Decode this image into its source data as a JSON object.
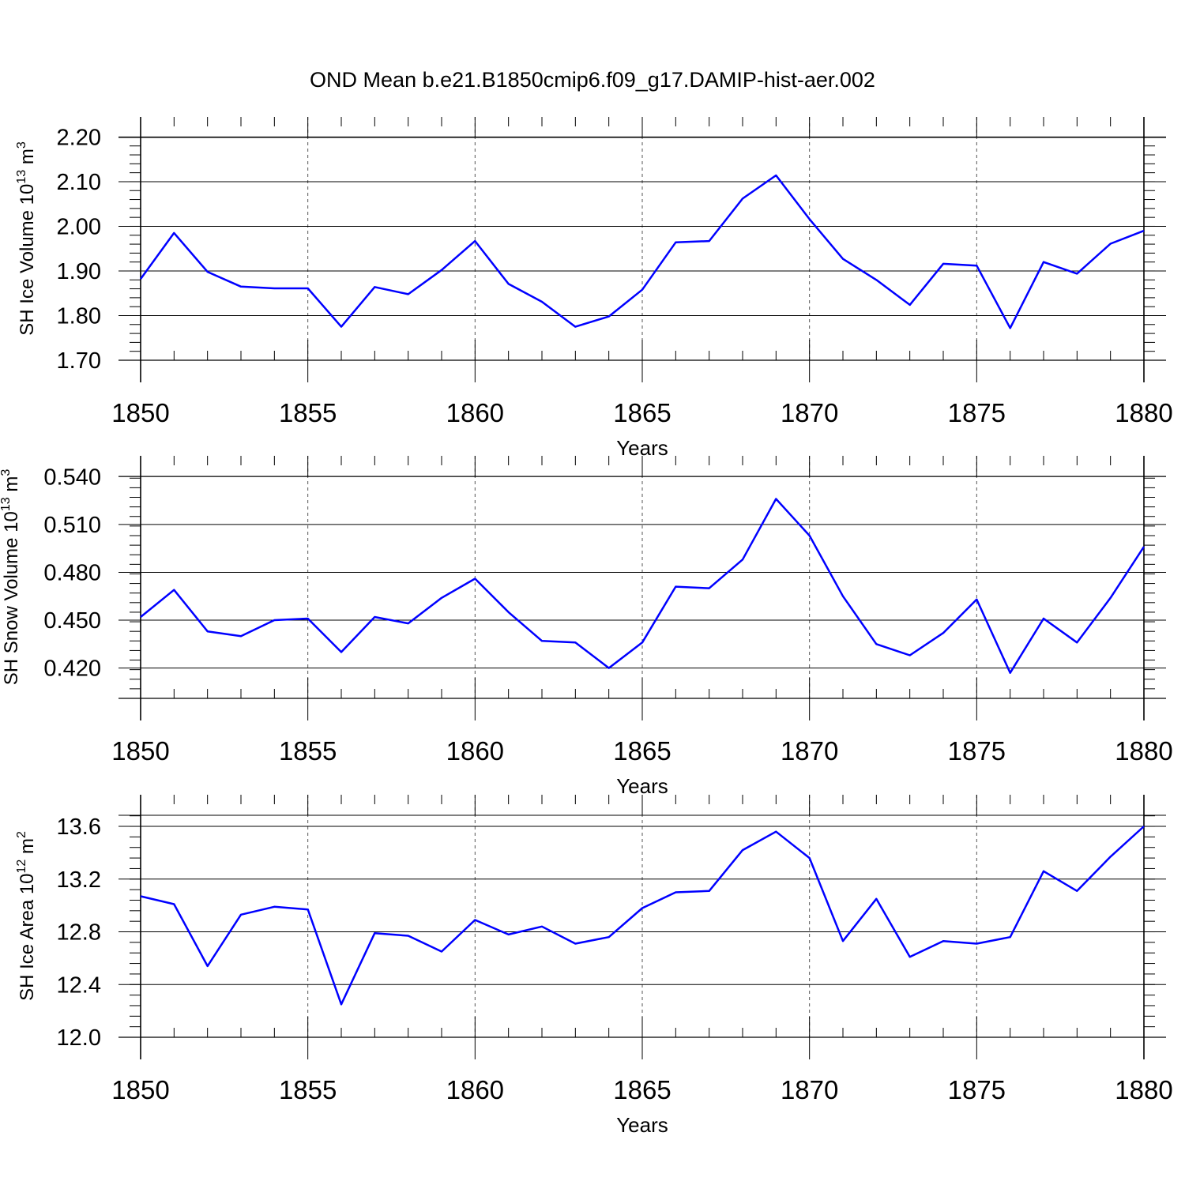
{
  "figure_title": "OND Mean b.e21.B1850cmip6.f09_g17.DAMIP-hist-aer.002",
  "chart_data": [
    {
      "type": "line",
      "xlabel": "Years",
      "ylabel_main": "SH Ice Volume 10",
      "ylabel_exp": "13",
      "ylabel_unit": " m",
      "ylabel_unit_exp": "3",
      "xlim": [
        1850,
        1880
      ],
      "ylim": [
        1.7,
        2.245
      ],
      "xticks": [
        1850,
        1855,
        1860,
        1865,
        1870,
        1875,
        1880
      ],
      "xtick_labels": [
        "1850",
        "1855",
        "1860",
        "1865",
        "1870",
        "1875",
        "1880"
      ],
      "yticks": [
        1.7,
        1.8,
        1.9,
        2.0,
        2.1,
        2.2
      ],
      "ytick_labels": [
        "1.70",
        "1.80",
        "1.90",
        "2.00",
        "2.10",
        "2.20"
      ],
      "ytick_minor": 0.02,
      "color": "#0000ff",
      "series": [
        {
          "name": "SH Ice Volume",
          "x": [
            1850,
            1851,
            1852,
            1853,
            1854,
            1855,
            1856,
            1857,
            1858,
            1859,
            1860,
            1861,
            1862,
            1863,
            1864,
            1865,
            1866,
            1867,
            1868,
            1869,
            1870,
            1871,
            1872,
            1873,
            1874,
            1875,
            1876,
            1877,
            1878,
            1879,
            1880
          ],
          "values": [
            1.882,
            1.985,
            1.898,
            1.865,
            1.861,
            1.861,
            1.775,
            1.864,
            1.848,
            1.902,
            1.967,
            1.871,
            1.831,
            1.775,
            1.798,
            1.858,
            1.964,
            1.967,
            2.062,
            2.114,
            2.016,
            1.927,
            1.88,
            1.824,
            1.916,
            1.912,
            1.772,
            1.92,
            1.894,
            1.961,
            1.99
          ]
        }
      ]
    },
    {
      "type": "line",
      "xlabel": "Years",
      "ylabel_main": "SH Snow Volume 10",
      "ylabel_exp": "13",
      "ylabel_unit": " m",
      "ylabel_unit_exp": "3",
      "xlim": [
        1850,
        1880
      ],
      "ylim": [
        0.401,
        0.553
      ],
      "xticks": [
        1850,
        1855,
        1860,
        1865,
        1870,
        1875,
        1880
      ],
      "xtick_labels": [
        "1850",
        "1855",
        "1860",
        "1865",
        "1870",
        "1875",
        "1880"
      ],
      "yticks": [
        0.42,
        0.45,
        0.48,
        0.51,
        0.54
      ],
      "ytick_labels": [
        "0.420",
        "0.450",
        "0.480",
        "0.510",
        "0.540"
      ],
      "ytick_minor": 0.006,
      "color": "#0000ff",
      "series": [
        {
          "name": "SH Snow Volume",
          "x": [
            1850,
            1851,
            1852,
            1853,
            1854,
            1855,
            1856,
            1857,
            1858,
            1859,
            1860,
            1861,
            1862,
            1863,
            1864,
            1865,
            1866,
            1867,
            1868,
            1869,
            1870,
            1871,
            1872,
            1873,
            1874,
            1875,
            1876,
            1877,
            1878,
            1879,
            1880
          ],
          "values": [
            0.452,
            0.469,
            0.443,
            0.44,
            0.45,
            0.451,
            0.43,
            0.452,
            0.448,
            0.464,
            0.476,
            0.455,
            0.437,
            0.436,
            0.42,
            0.436,
            0.471,
            0.47,
            0.488,
            0.526,
            0.503,
            0.465,
            0.435,
            0.428,
            0.442,
            0.463,
            0.417,
            0.451,
            0.436,
            0.464,
            0.496
          ]
        }
      ]
    },
    {
      "type": "line",
      "xlabel": "Years",
      "ylabel_main": "SH Ice Area 10",
      "ylabel_exp": "12",
      "ylabel_unit": " m",
      "ylabel_unit_exp": "2",
      "xlim": [
        1850,
        1880
      ],
      "ylim": [
        12.0,
        13.84
      ],
      "xticks": [
        1850,
        1855,
        1860,
        1865,
        1870,
        1875,
        1880
      ],
      "xtick_labels": [
        "1850",
        "1855",
        "1860",
        "1865",
        "1870",
        "1875",
        "1880"
      ],
      "yticks": [
        12.0,
        12.4,
        12.8,
        13.2,
        13.6
      ],
      "ytick_labels": [
        "12.0",
        "12.4",
        "12.8",
        "13.2",
        "13.6"
      ],
      "ytick_minor": 0.08,
      "color": "#0000ff",
      "series": [
        {
          "name": "SH Ice Area",
          "x": [
            1850,
            1851,
            1852,
            1853,
            1854,
            1855,
            1856,
            1857,
            1858,
            1859,
            1860,
            1861,
            1862,
            1863,
            1864,
            1865,
            1866,
            1867,
            1868,
            1869,
            1870,
            1871,
            1872,
            1873,
            1874,
            1875,
            1876,
            1877,
            1878,
            1879,
            1880
          ],
          "values": [
            13.07,
            13.01,
            12.54,
            12.93,
            12.99,
            12.97,
            12.25,
            12.79,
            12.77,
            12.65,
            12.89,
            12.78,
            12.84,
            12.71,
            12.76,
            12.98,
            13.1,
            13.11,
            13.42,
            13.56,
            13.36,
            12.73,
            13.05,
            12.61,
            12.73,
            12.71,
            12.76,
            13.26,
            13.11,
            13.37,
            13.6
          ]
        }
      ]
    }
  ]
}
